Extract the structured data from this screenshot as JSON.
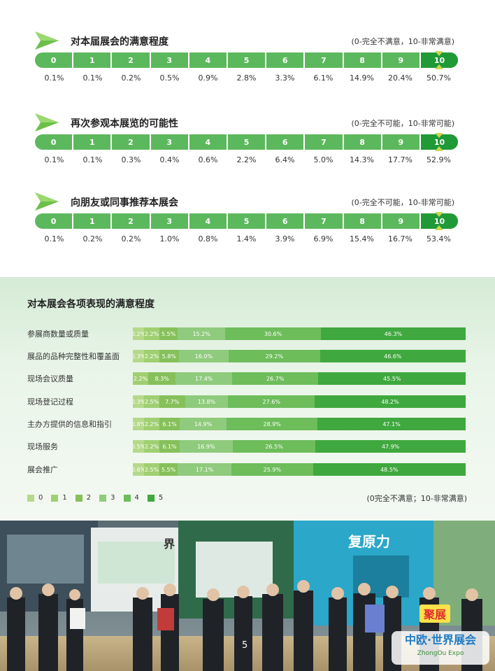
{
  "scale_sections": [
    {
      "title": "对本届展会的满意程度",
      "range_note": "(0-完全不满意，10-非常满意)",
      "scores": [
        "0",
        "1",
        "2",
        "3",
        "4",
        "5",
        "6",
        "7",
        "8",
        "9",
        "10"
      ],
      "percentages": [
        "0.1%",
        "0.1%",
        "0.2%",
        "0.5%",
        "0.9%",
        "2.8%",
        "3.3%",
        "6.1%",
        "14.9%",
        "20.4%",
        "50.7%"
      ]
    },
    {
      "title": "再次参观本展览的可能性",
      "range_note": "(0-完全不可能，10-非常可能)",
      "scores": [
        "0",
        "1",
        "2",
        "3",
        "4",
        "5",
        "6",
        "7",
        "8",
        "9",
        "10"
      ],
      "percentages": [
        "0.1%",
        "0.1%",
        "0.3%",
        "0.4%",
        "0.6%",
        "2.2%",
        "6.4%",
        "5.0%",
        "14.3%",
        "17.7%",
        "52.9%"
      ]
    },
    {
      "title": "向朋友或同事推荐本展会",
      "range_note": "(0-完全不可能，10-非常可能)",
      "scores": [
        "0",
        "1",
        "2",
        "3",
        "4",
        "5",
        "6",
        "7",
        "8",
        "9",
        "10"
      ],
      "percentages": [
        "0.1%",
        "0.2%",
        "0.2%",
        "1.0%",
        "0.8%",
        "1.4%",
        "3.9%",
        "6.9%",
        "15.4%",
        "16.7%",
        "53.4%"
      ]
    }
  ],
  "performance": {
    "title": "对本展会各项表现的满意程度",
    "range_note": "(0完全不满意；10-非常满意)",
    "legend": [
      "0",
      "1",
      "2",
      "3",
      "4",
      "5"
    ],
    "colors": [
      "#b5d98a",
      "#a0cf72",
      "#86c05a",
      "#8fcb7c",
      "#6dbd5a",
      "#3fa83e"
    ],
    "chart_data": {
      "type": "bar",
      "stacked": true,
      "orientation": "horizontal",
      "categories": [
        "参展商数量或质量",
        "展品的品种完整性和覆盖面",
        "现场会议质量",
        "现场登记过程",
        "主办方提供的信息和指引",
        "现场服务",
        "展会推广"
      ],
      "series": [
        {
          "name": "0",
          "values": [
            0.2,
            0.3,
            0,
            0.3,
            0.8,
            0.5,
            0.6
          ],
          "labels": [
            "0.2%",
            "0.3%",
            "",
            "0.3%",
            "0.8%",
            "0.5%",
            "0.6%"
          ]
        },
        {
          "name": "1",
          "values": [
            2.2,
            2.2,
            2.2,
            2.5,
            2.2,
            2.2,
            2.5
          ],
          "labels": [
            "2.2%",
            "2.2%",
            "2.2%",
            "2.5%",
            "2.2%",
            "2.2%",
            "2.5%"
          ]
        },
        {
          "name": "2",
          "values": [
            5.5,
            5.8,
            8.3,
            7.7,
            6.1,
            6.1,
            5.5
          ],
          "labels": [
            "5.5%",
            "5.8%",
            "8.3%",
            "7.7%",
            "6.1%",
            "6.1%",
            "5.5%"
          ]
        },
        {
          "name": "3",
          "values": [
            15.2,
            16.0,
            17.4,
            13.8,
            14.9,
            16.9,
            17.1
          ],
          "labels": [
            "15.2%",
            "16.0%",
            "17.4%",
            "13.8%",
            "14.9%",
            "16.9%",
            "17.1%"
          ]
        },
        {
          "name": "4",
          "values": [
            30.6,
            29.2,
            26.7,
            27.6,
            28.9,
            26.5,
            25.9
          ],
          "labels": [
            "30.6%",
            "29.2%",
            "26.7%",
            "27.6%",
            "28.9%",
            "26.5%",
            "25.9%"
          ]
        },
        {
          "name": "5",
          "values": [
            46.3,
            46.6,
            45.5,
            48.2,
            47.1,
            47.9,
            48.5
          ],
          "labels": [
            "46.3%",
            "46.6%",
            "45.5%",
            "48.2%",
            "47.1%",
            "47.9%",
            "48.5%"
          ]
        }
      ]
    }
  },
  "photo": {
    "signs": [
      "复原力",
      "界"
    ],
    "logo_text": "中欧·世界展会",
    "logo_sub": "ZhongOu Expo",
    "badge_text": "聚展"
  },
  "page_number": "5"
}
